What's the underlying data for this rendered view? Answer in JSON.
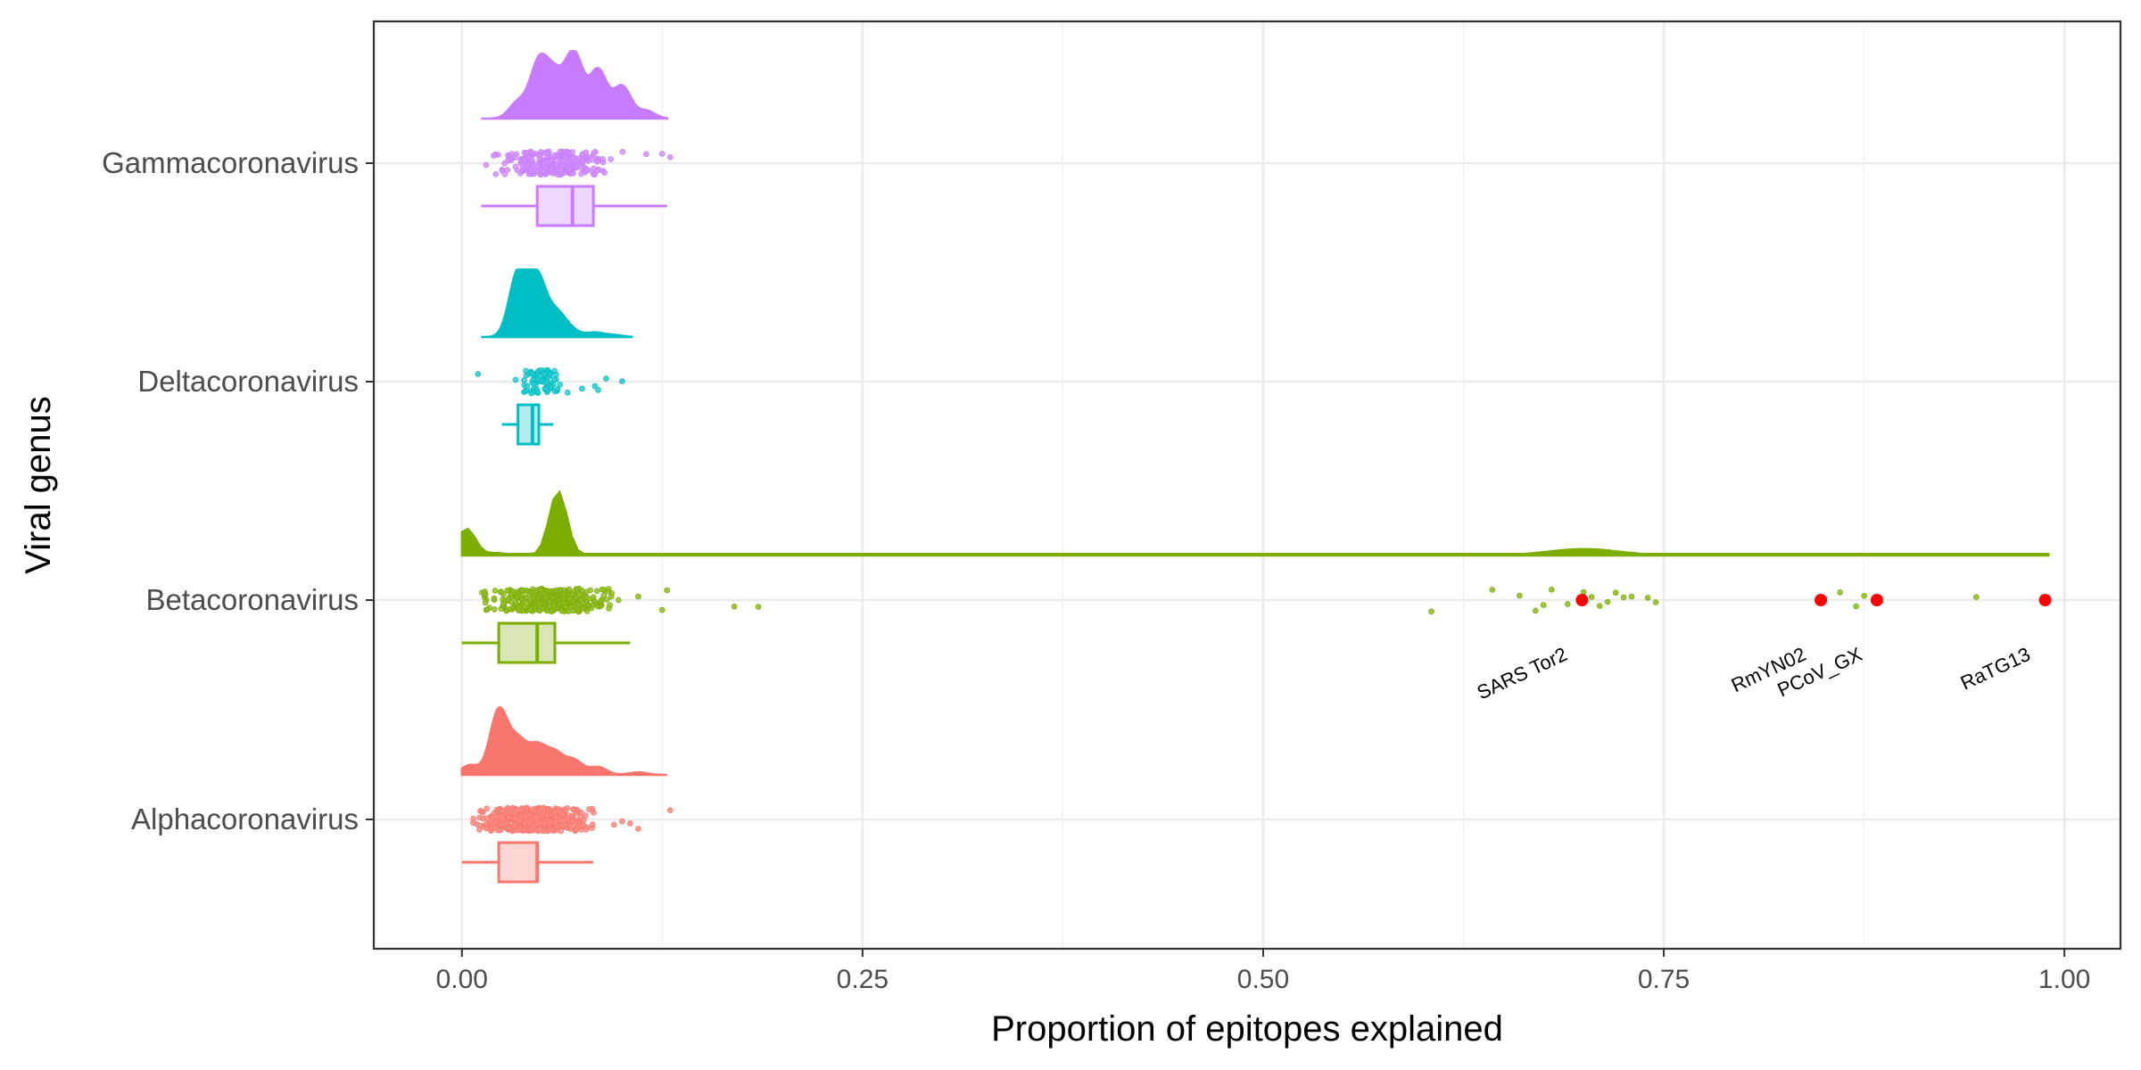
{
  "chart_data": {
    "type": "raincloud",
    "title": "",
    "xlabel": "Proportion of epitopes explained",
    "ylabel": "Viral genus",
    "xlim": [
      -0.055,
      1.035
    ],
    "x_ticks": [
      0.0,
      0.25,
      0.5,
      0.75,
      1.0
    ],
    "x_tick_labels": [
      "0.00",
      "0.25",
      "0.50",
      "0.75",
      "1.00"
    ],
    "grid": true,
    "legend": "none",
    "categories": [
      "Gammacoronavirus",
      "Deltacoronavirus",
      "Betacoronavirus",
      "Alphacoronavirus"
    ],
    "series": [
      {
        "name": "Gammacoronavirus",
        "color": "#C77CFF",
        "box": {
          "whisker_low": 0.012,
          "q1": 0.047,
          "median": 0.069,
          "q3": 0.082,
          "whisker_high": 0.128
        },
        "density_range": [
          0.012,
          0.128
        ],
        "density_peaks": [
          [
            0.035,
            0.25
          ],
          [
            0.048,
            0.85
          ],
          [
            0.058,
            0.6
          ],
          [
            0.07,
            1.0
          ],
          [
            0.085,
            0.75
          ],
          [
            0.1,
            0.5
          ],
          [
            0.115,
            0.12
          ]
        ],
        "n_points": 260,
        "points_range": [
          0.01,
          0.104
        ],
        "outliers": [
          0.115,
          0.125,
          0.13
        ]
      },
      {
        "name": "Deltacoronavirus",
        "color": "#00BFC4",
        "box": {
          "whisker_low": 0.025,
          "q1": 0.035,
          "median": 0.044,
          "q3": 0.048,
          "whisker_high": 0.057
        },
        "density_range": [
          0.012,
          0.106
        ],
        "density_peaks": [
          [
            0.035,
            1.0
          ],
          [
            0.047,
            0.92
          ],
          [
            0.059,
            0.35
          ],
          [
            0.068,
            0.1
          ],
          [
            0.083,
            0.07
          ],
          [
            0.095,
            0.03
          ]
        ],
        "n_points": 80,
        "points_range": [
          0.03,
          0.07
        ],
        "outliers": [
          0.01,
          0.075,
          0.083,
          0.085,
          0.09,
          0.1
        ]
      },
      {
        "name": "Betacoronavirus",
        "color": "#7CAE00",
        "box": {
          "whisker_low": 0.0,
          "q1": 0.023,
          "median": 0.047,
          "q3": 0.058,
          "whisker_high": 0.105
        },
        "density_range": [
          0.0,
          0.99
        ],
        "density_peaks": [
          [
            0.003,
            0.42
          ],
          [
            0.022,
            0.04
          ],
          [
            0.06,
            1.0
          ],
          [
            0.7,
            0.1
          ],
          [
            0.85,
            0.02
          ],
          [
            0.99,
            0.02
          ]
        ],
        "n_points": 320,
        "points_range": [
          0.0,
          0.105
        ],
        "outliers": [
          0.11,
          0.125,
          0.128,
          0.17,
          0.185,
          0.605,
          0.643,
          0.66,
          0.67,
          0.675,
          0.68,
          0.69,
          0.7,
          0.705,
          0.71,
          0.715,
          0.72,
          0.725,
          0.73,
          0.74,
          0.745,
          0.86,
          0.87,
          0.875,
          0.945
        ],
        "highlighted": [
          {
            "label": "SARS Tor2",
            "x": 0.699
          },
          {
            "label": "RmYN02",
            "x": 0.848
          },
          {
            "label": "PCoV_GX",
            "x": 0.883
          },
          {
            "label": "RaTG13",
            "x": 0.988
          }
        ]
      },
      {
        "name": "Alphacoronavirus",
        "color": "#F8766D",
        "box": {
          "whisker_low": 0.0,
          "q1": 0.023,
          "median": 0.047,
          "q3": 0.047,
          "whisker_high": 0.082
        },
        "density_range": [
          0.0,
          0.128
        ],
        "density_peaks": [
          [
            0.005,
            0.15
          ],
          [
            0.023,
            1.0
          ],
          [
            0.035,
            0.5
          ],
          [
            0.047,
            0.42
          ],
          [
            0.058,
            0.32
          ],
          [
            0.07,
            0.22
          ],
          [
            0.085,
            0.12
          ],
          [
            0.11,
            0.04
          ]
        ],
        "n_points": 520,
        "points_range": [
          0.0,
          0.09
        ],
        "outliers": [
          0.095,
          0.1,
          0.105,
          0.11,
          0.13
        ]
      }
    ],
    "highlight_color": "#FF0000"
  }
}
